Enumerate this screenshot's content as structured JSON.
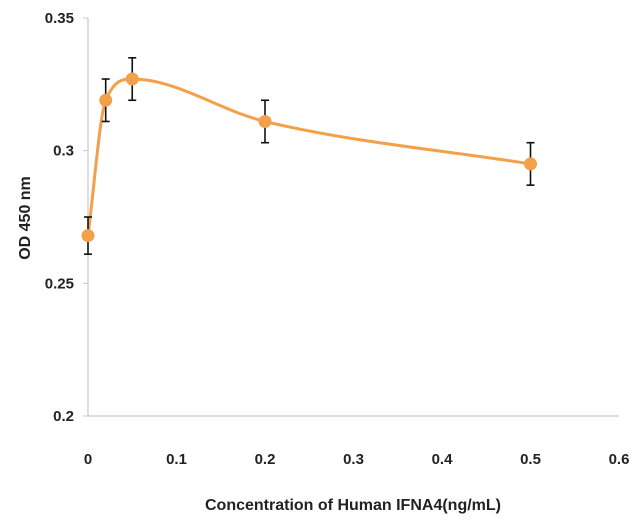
{
  "chart_data": {
    "type": "line",
    "smooth": true,
    "title": "",
    "xlabel": "Concentration of Human IFNA4(ng/mL)",
    "ylabel": "OD 450 nm",
    "xlim": [
      0,
      0.6
    ],
    "ylim": [
      0.2,
      0.35
    ],
    "xticks": [
      0,
      0.1,
      0.2,
      0.3,
      0.4,
      0.5,
      0.6
    ],
    "xtick_labels": [
      "0",
      "0.1",
      "0.2",
      "0.3",
      "0.4",
      "0.5",
      "0.6"
    ],
    "yticks": [
      0.2,
      0.25,
      0.3,
      0.35
    ],
    "ytick_labels": [
      "0.2",
      "0.25",
      "0.3",
      "0.35"
    ],
    "grid": false,
    "legend": "none",
    "series": [
      {
        "color": "#f4a04b",
        "x": [
          0,
          0.02,
          0.05,
          0.2,
          0.5
        ],
        "y": [
          0.268,
          0.319,
          0.327,
          0.311,
          0.295
        ],
        "error": [
          0.007,
          0.008,
          0.008,
          0.008,
          0.008
        ]
      }
    ]
  }
}
